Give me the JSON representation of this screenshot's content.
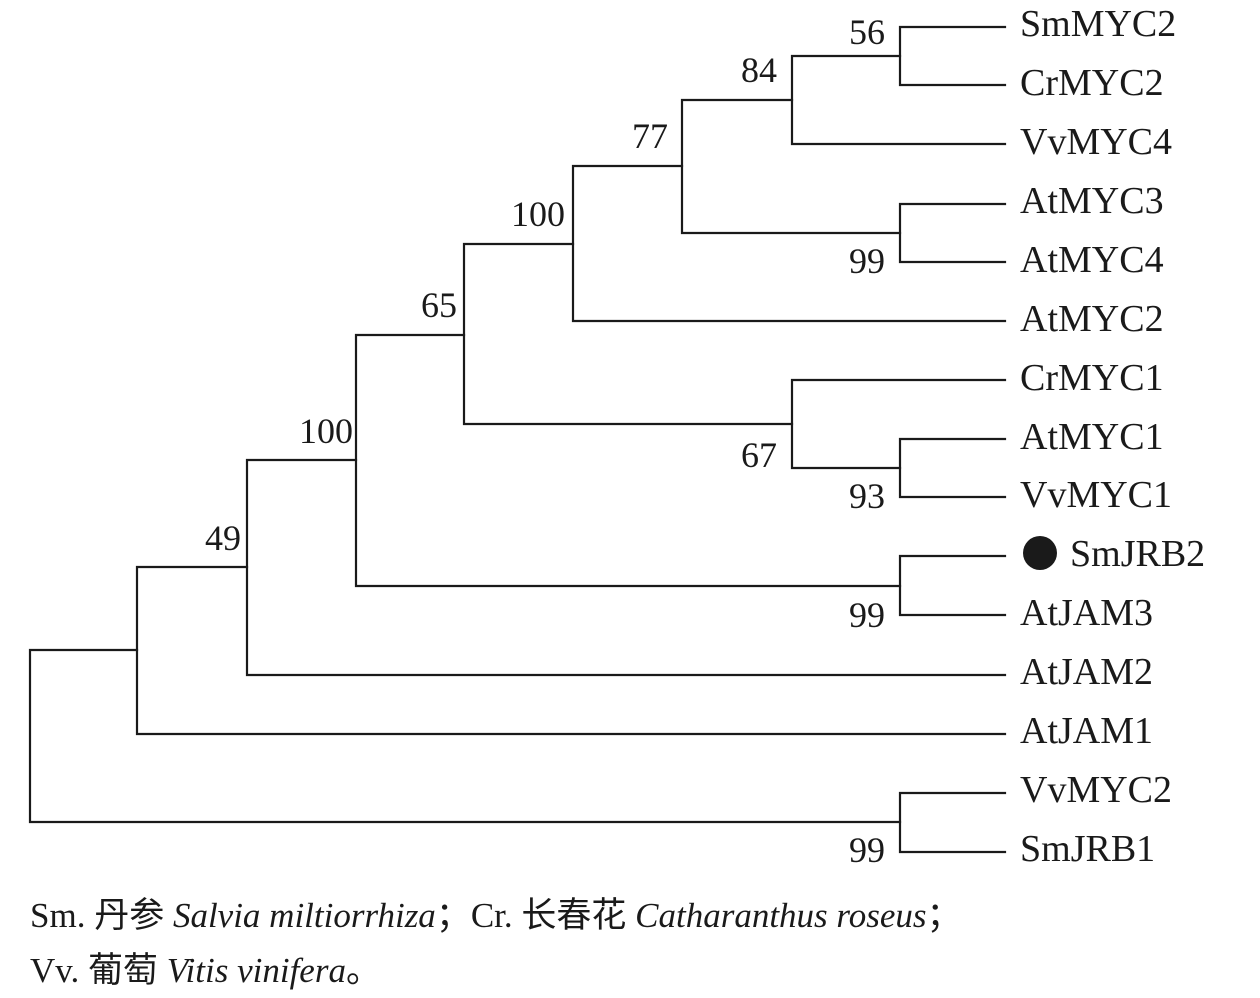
{
  "tree": {
    "taxa": [
      "SmMYC2",
      "CrMYC2",
      "VvMYC4",
      "AtMYC3",
      "AtMYC4",
      "AtMYC2",
      "CrMYC1",
      "AtMYC1",
      "VvMYC1",
      "SmJRB2",
      "AtJAM3",
      "AtJAM2",
      "AtJAM1",
      "VvMYC2",
      "SmJRB1"
    ],
    "highlighted_taxon": "SmJRB2",
    "bootstrap_values": [
      "56",
      "84",
      "77",
      "99",
      "100",
      "65",
      "93",
      "67",
      "99",
      "100",
      "49",
      "99"
    ]
  },
  "legend": {
    "line1": [
      {
        "text": "Sm. 丹参 ",
        "italic": false
      },
      {
        "text": "Salvia miltiorrhiza",
        "italic": true
      },
      {
        "text": "；Cr. 长春花 ",
        "italic": false
      },
      {
        "text": "Catharanthus roseus",
        "italic": true
      },
      {
        "text": "；",
        "italic": false
      }
    ],
    "line2": [
      {
        "text": "Vv. 葡萄 ",
        "italic": false
      },
      {
        "text": "Vitis vinifera",
        "italic": true
      },
      {
        "text": "。",
        "italic": false
      }
    ]
  }
}
